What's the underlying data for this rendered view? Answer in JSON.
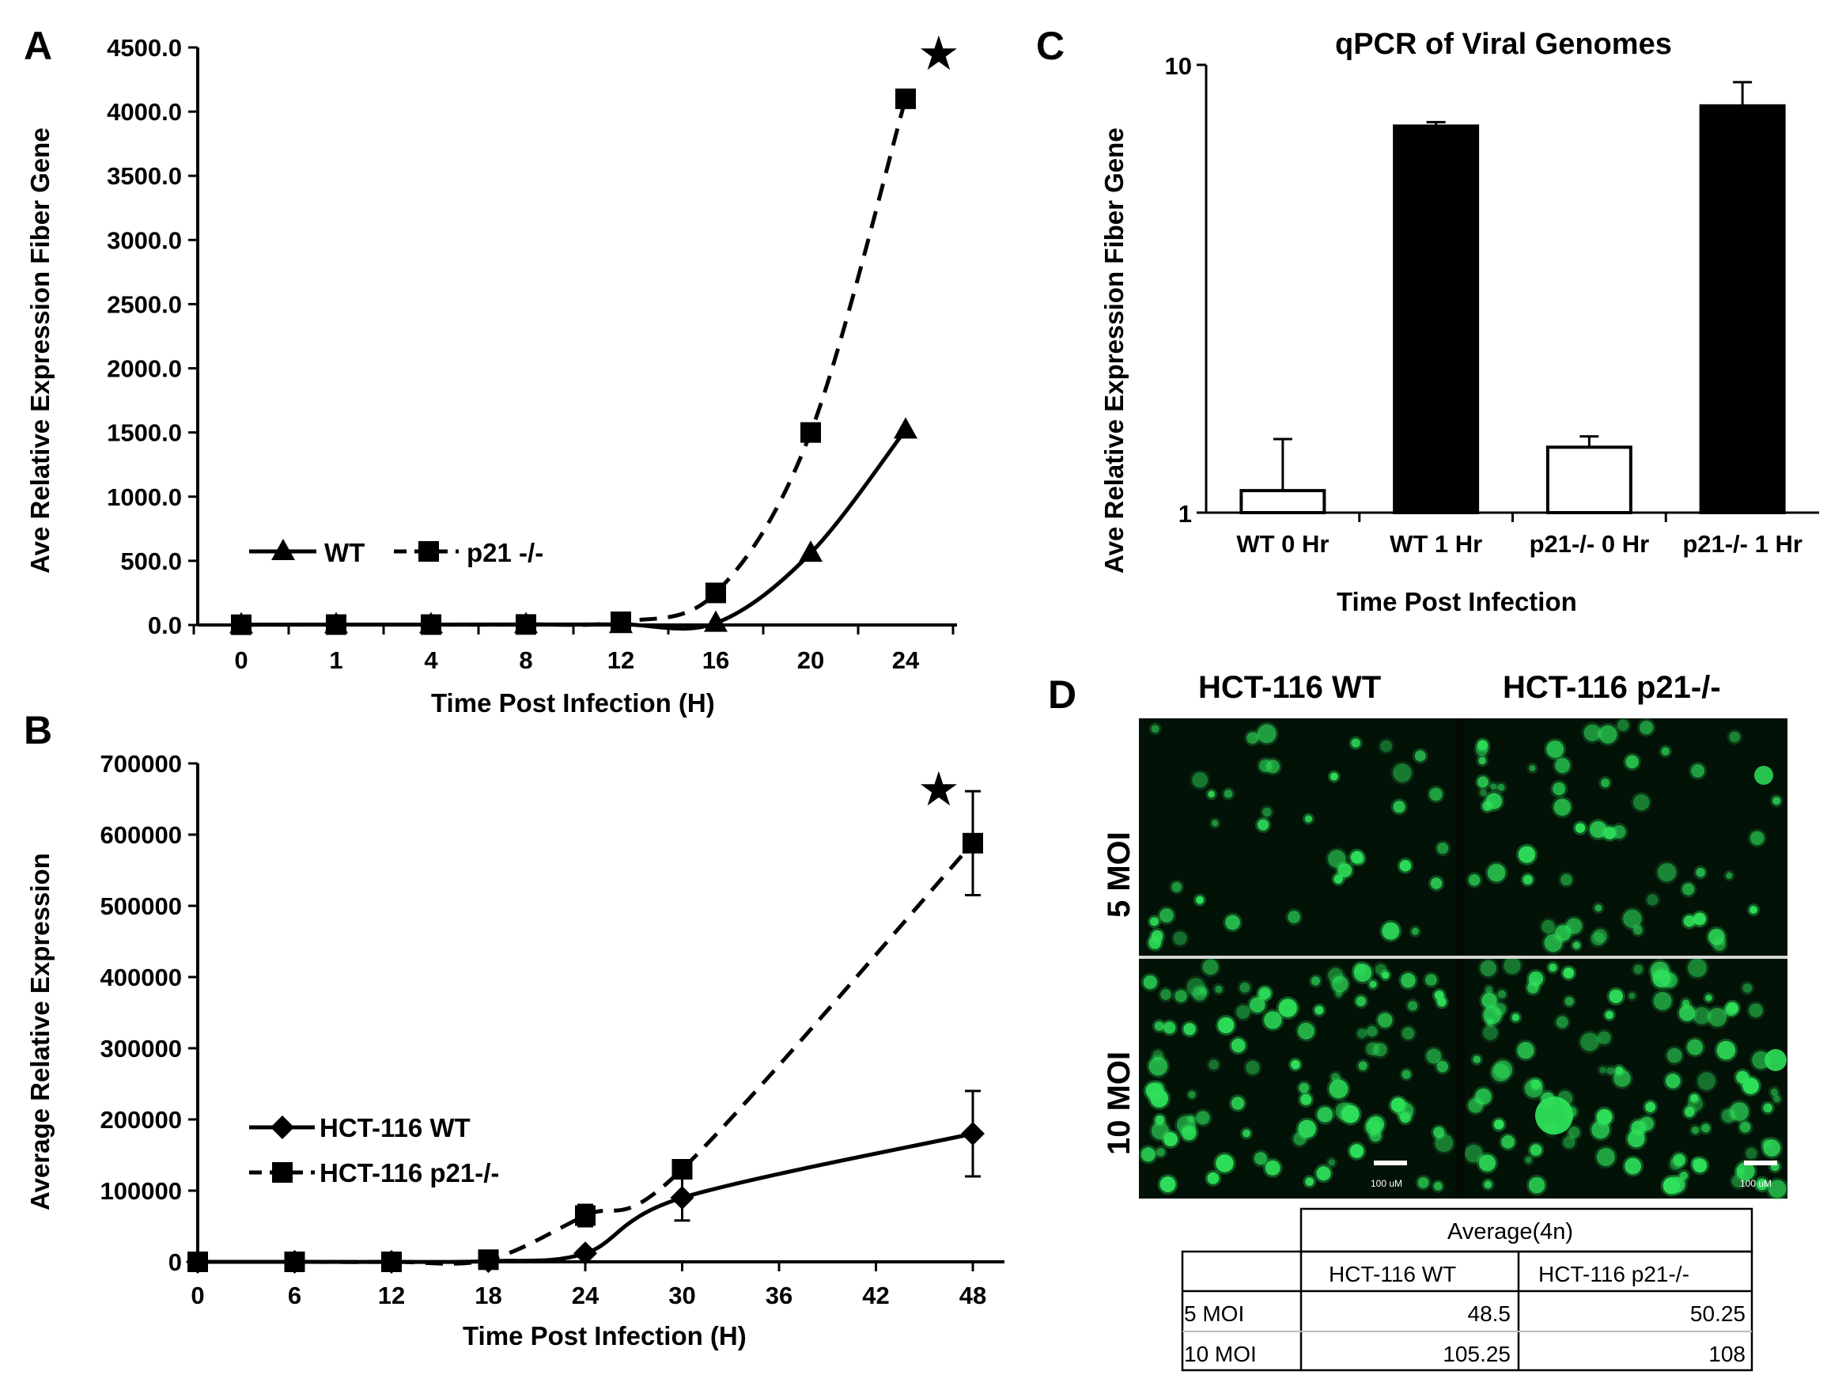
{
  "chart_data": [
    {
      "panel": "A",
      "type": "line",
      "title": "",
      "xlabel": "Time Post Infection (H)",
      "ylabel": "Ave Relative Expression Fiber Gene",
      "categories": [
        "0",
        "1",
        "4",
        "8",
        "12",
        "16",
        "20",
        "24"
      ],
      "y_ticks": [
        "0.0",
        "500.0",
        "1000.0",
        "1500.0",
        "2000.0",
        "2500.0",
        "3000.0",
        "3500.0",
        "4000.0",
        "4500.0"
      ],
      "ylim": [
        0,
        4500
      ],
      "series": [
        {
          "name": "WT",
          "marker": "triangle",
          "dash": "solid",
          "values": [
            2,
            3,
            3,
            4,
            5,
            15,
            560,
            1520
          ]
        },
        {
          "name": "p21 -/-",
          "marker": "square",
          "dash": "dashed",
          "values": [
            2,
            3,
            3,
            4,
            25,
            250,
            1500,
            4100
          ]
        }
      ],
      "annotation": "★",
      "legend": "lower-left"
    },
    {
      "panel": "B",
      "type": "line",
      "title": "",
      "xlabel": "Time Post Infection (H)",
      "ylabel": "Average Relative Expression",
      "x_ticks": [
        0,
        6,
        12,
        18,
        24,
        30,
        36,
        42,
        48
      ],
      "y_ticks": [
        "0",
        "100000",
        "200000",
        "300000",
        "400000",
        "500000",
        "600000",
        "700000"
      ],
      "xlim": [
        0,
        48
      ],
      "ylim": [
        0,
        700000
      ],
      "series": [
        {
          "name": "HCT-116 WT",
          "marker": "diamond",
          "dash": "solid",
          "x": [
            0,
            6,
            12,
            18,
            24,
            30,
            48
          ],
          "values": [
            0,
            0,
            0,
            1000,
            12000,
            90000,
            180000
          ],
          "errors": [
            0,
            0,
            0,
            0,
            0,
            32000,
            60000
          ]
        },
        {
          "name": "HCT-116 p21-/-",
          "marker": "square",
          "dash": "dashed",
          "x": [
            0,
            6,
            12,
            18,
            24,
            30,
            48
          ],
          "values": [
            0,
            0,
            0,
            3000,
            65000,
            130000,
            588000
          ],
          "errors": [
            0,
            0,
            0,
            0,
            15000,
            0,
            73000
          ]
        }
      ],
      "annotation": "★",
      "legend": "lower-left"
    },
    {
      "panel": "C",
      "type": "bar",
      "title": "qPCR of Viral Genomes",
      "xlabel": "Time Post Infection",
      "ylabel": "Ave Relative Expression Fiber Gene",
      "y_scale": "log",
      "ylim": [
        1,
        10
      ],
      "y_ticks": [
        "1",
        "10"
      ],
      "categories": [
        "WT 0 Hr",
        "WT 1 Hr",
        "p21-/- 0 Hr",
        "p21-/- 1 Hr"
      ],
      "values": [
        1.12,
        7.3,
        1.4,
        8.1
      ],
      "errors": [
        0.34,
        0.15,
        0.08,
        1.05
      ],
      "fills": [
        "#ffffff",
        "#000000",
        "#ffffff",
        "#000000"
      ]
    }
  ],
  "micrograph": {
    "panel": "D",
    "columns": [
      "HCT-116 WT",
      "HCT-116 p21-/-"
    ],
    "rows": [
      "5  MOI",
      "10  MOI"
    ],
    "scale_bar": "100 uM",
    "fluorescence_color": "#2ee05a"
  },
  "table": {
    "group_header": "Average(4n)",
    "columns": [
      "HCT-116 WT",
      "HCT-116 p21-/-"
    ],
    "rows": [
      {
        "label": "5 MOI",
        "values": [
          "48.5",
          "50.25"
        ]
      },
      {
        "label": "10 MOI",
        "values": [
          "105.25",
          "108"
        ]
      }
    ]
  }
}
